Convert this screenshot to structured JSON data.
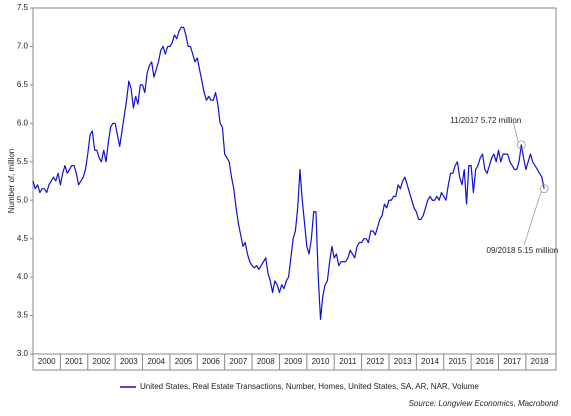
{
  "chart_data": {
    "type": "line",
    "y_label": "Number of, million",
    "source": "Source: Longview Economics, Macrobond",
    "xlim": [
      2000,
      2019.1
    ],
    "xticks": [
      {
        "value": 2000,
        "label": "2000"
      },
      {
        "value": 2001,
        "label": "2001"
      },
      {
        "value": 2002,
        "label": "2002"
      },
      {
        "value": 2003,
        "label": "2003"
      },
      {
        "value": 2004,
        "label": "2004"
      },
      {
        "value": 2005,
        "label": "2005"
      },
      {
        "value": 2006,
        "label": "2006"
      },
      {
        "value": 2007,
        "label": "2007"
      },
      {
        "value": 2008,
        "label": "2008"
      },
      {
        "value": 2009,
        "label": "2009"
      },
      {
        "value": 2010,
        "label": "2010"
      },
      {
        "value": 2011,
        "label": "2011"
      },
      {
        "value": 2012,
        "label": "2012"
      },
      {
        "value": 2013,
        "label": "2013"
      },
      {
        "value": 2014,
        "label": "2014"
      },
      {
        "value": 2015,
        "label": "2015"
      },
      {
        "value": 2016,
        "label": "2016"
      },
      {
        "value": 2017,
        "label": "2017"
      },
      {
        "value": 2018,
        "label": "2018"
      }
    ],
    "ylim": [
      3.0,
      7.5
    ],
    "yticks": [
      {
        "value": 3.0,
        "label": "3.0"
      },
      {
        "value": 3.5,
        "label": "3.5"
      },
      {
        "value": 4.0,
        "label": "4.0"
      },
      {
        "value": 4.5,
        "label": "4.5"
      },
      {
        "value": 5.0,
        "label": "5.0"
      },
      {
        "value": 5.5,
        "label": "5.5"
      },
      {
        "value": 6.0,
        "label": "6.0"
      },
      {
        "value": 6.5,
        "label": "6.5"
      },
      {
        "value": 7.0,
        "label": "7.0"
      },
      {
        "value": 7.5,
        "label": "7.5"
      }
    ],
    "x": [
      2000,
      2000.083,
      2000.167,
      2000.25,
      2000.333,
      2000.417,
      2000.5,
      2000.583,
      2000.667,
      2000.75,
      2000.833,
      2000.917,
      2001,
      2001.083,
      2001.167,
      2001.25,
      2001.333,
      2001.417,
      2001.5,
      2001.583,
      2001.667,
      2001.75,
      2001.833,
      2001.917,
      2002,
      2002.083,
      2002.167,
      2002.25,
      2002.333,
      2002.417,
      2002.5,
      2002.583,
      2002.667,
      2002.75,
      2002.833,
      2002.917,
      2003,
      2003.083,
      2003.167,
      2003.25,
      2003.333,
      2003.417,
      2003.5,
      2003.583,
      2003.667,
      2003.75,
      2003.833,
      2003.917,
      2004,
      2004.083,
      2004.167,
      2004.25,
      2004.333,
      2004.417,
      2004.5,
      2004.583,
      2004.667,
      2004.75,
      2004.833,
      2004.917,
      2005,
      2005.083,
      2005.167,
      2005.25,
      2005.333,
      2005.417,
      2005.5,
      2005.583,
      2005.667,
      2005.75,
      2005.833,
      2005.917,
      2006,
      2006.083,
      2006.167,
      2006.25,
      2006.333,
      2006.417,
      2006.5,
      2006.583,
      2006.667,
      2006.75,
      2006.833,
      2006.917,
      2007,
      2007.083,
      2007.167,
      2007.25,
      2007.333,
      2007.417,
      2007.5,
      2007.583,
      2007.667,
      2007.75,
      2007.833,
      2007.917,
      2008,
      2008.083,
      2008.167,
      2008.25,
      2008.333,
      2008.417,
      2008.5,
      2008.583,
      2008.667,
      2008.75,
      2008.833,
      2008.917,
      2009,
      2009.083,
      2009.167,
      2009.25,
      2009.333,
      2009.417,
      2009.5,
      2009.583,
      2009.667,
      2009.75,
      2009.833,
      2009.917,
      2010,
      2010.083,
      2010.167,
      2010.25,
      2010.333,
      2010.417,
      2010.5,
      2010.583,
      2010.667,
      2010.75,
      2010.833,
      2010.917,
      2011,
      2011.083,
      2011.167,
      2011.25,
      2011.333,
      2011.417,
      2011.5,
      2011.583,
      2011.667,
      2011.75,
      2011.833,
      2011.917,
      2012,
      2012.083,
      2012.167,
      2012.25,
      2012.333,
      2012.417,
      2012.5,
      2012.583,
      2012.667,
      2012.75,
      2012.833,
      2012.917,
      2013,
      2013.083,
      2013.167,
      2013.25,
      2013.333,
      2013.417,
      2013.5,
      2013.583,
      2013.667,
      2013.75,
      2013.833,
      2013.917,
      2014,
      2014.083,
      2014.167,
      2014.25,
      2014.333,
      2014.417,
      2014.5,
      2014.583,
      2014.667,
      2014.75,
      2014.833,
      2014.917,
      2015,
      2015.083,
      2015.167,
      2015.25,
      2015.333,
      2015.417,
      2015.5,
      2015.583,
      2015.667,
      2015.75,
      2015.833,
      2015.917,
      2016,
      2016.083,
      2016.167,
      2016.25,
      2016.333,
      2016.417,
      2016.5,
      2016.583,
      2016.667,
      2016.75,
      2016.833,
      2016.917,
      2017,
      2017.083,
      2017.167,
      2017.25,
      2017.333,
      2017.417,
      2017.5,
      2017.583,
      2017.667,
      2017.75,
      2017.833,
      2017.917,
      2018,
      2018.083,
      2018.167,
      2018.25,
      2018.333,
      2018.417,
      2018.5,
      2018.583,
      2018.667
    ],
    "series": [
      {
        "name": "United States, Real Estate Transactions, Number, Homes, United States, SA, AR, NAR, Volume",
        "color": "#1010d0",
        "values": [
          5.25,
          5.15,
          5.2,
          5.1,
          5.15,
          5.15,
          5.1,
          5.2,
          5.25,
          5.3,
          5.25,
          5.35,
          5.2,
          5.35,
          5.45,
          5.35,
          5.4,
          5.45,
          5.45,
          5.35,
          5.2,
          5.25,
          5.3,
          5.4,
          5.6,
          5.85,
          5.9,
          5.65,
          5.65,
          5.55,
          5.5,
          5.65,
          5.5,
          5.75,
          5.95,
          6.0,
          6.0,
          5.85,
          5.7,
          5.9,
          6.1,
          6.3,
          6.55,
          6.45,
          6.2,
          6.35,
          6.25,
          6.5,
          6.5,
          6.4,
          6.65,
          6.75,
          6.8,
          6.6,
          6.7,
          6.8,
          6.95,
          7.0,
          6.9,
          7.0,
          7.0,
          7.05,
          7.15,
          7.1,
          7.2,
          7.25,
          7.25,
          7.15,
          7.0,
          7.0,
          6.9,
          6.8,
          6.85,
          6.7,
          6.55,
          6.4,
          6.3,
          6.35,
          6.3,
          6.3,
          6.4,
          6.25,
          6.0,
          5.95,
          5.6,
          5.55,
          5.5,
          5.3,
          5.15,
          4.9,
          4.7,
          4.55,
          4.4,
          4.45,
          4.3,
          4.2,
          4.15,
          4.12,
          4.15,
          4.1,
          4.15,
          4.2,
          4.25,
          4.05,
          3.95,
          3.8,
          3.95,
          3.9,
          3.8,
          3.9,
          3.85,
          3.95,
          4.0,
          4.25,
          4.5,
          4.6,
          4.9,
          5.4,
          5.0,
          4.7,
          4.4,
          4.3,
          4.5,
          4.85,
          4.85,
          4.0,
          3.45,
          3.75,
          3.9,
          3.95,
          4.2,
          4.4,
          4.25,
          4.3,
          4.15,
          4.2,
          4.2,
          4.2,
          4.25,
          4.35,
          4.3,
          4.25,
          4.4,
          4.45,
          4.45,
          4.5,
          4.5,
          4.45,
          4.6,
          4.6,
          4.55,
          4.65,
          4.75,
          4.8,
          4.95,
          4.9,
          5.0,
          5.0,
          5.05,
          5.05,
          5.2,
          5.15,
          5.25,
          5.3,
          5.2,
          5.1,
          5.0,
          4.9,
          4.85,
          4.75,
          4.75,
          4.8,
          4.9,
          5.0,
          5.05,
          5.0,
          5.0,
          5.05,
          5.0,
          5.1,
          5.05,
          5.0,
          5.2,
          5.35,
          5.35,
          5.45,
          5.5,
          5.3,
          5.2,
          5.4,
          4.95,
          5.45,
          5.45,
          5.1,
          5.4,
          5.45,
          5.55,
          5.6,
          5.4,
          5.35,
          5.45,
          5.55,
          5.6,
          5.5,
          5.65,
          5.5,
          5.6,
          5.6,
          5.6,
          5.5,
          5.45,
          5.4,
          5.4,
          5.5,
          5.72,
          5.55,
          5.4,
          5.5,
          5.6,
          5.5,
          5.45,
          5.4,
          5.35,
          5.3,
          5.15
        ]
      }
    ],
    "annotations": [
      {
        "text": "11/2017 5.72 million",
        "x": 2017.833,
        "y": 5.72
      },
      {
        "text": "09/2018 5.15 million",
        "x": 2018.667,
        "y": 5.15
      }
    ]
  }
}
